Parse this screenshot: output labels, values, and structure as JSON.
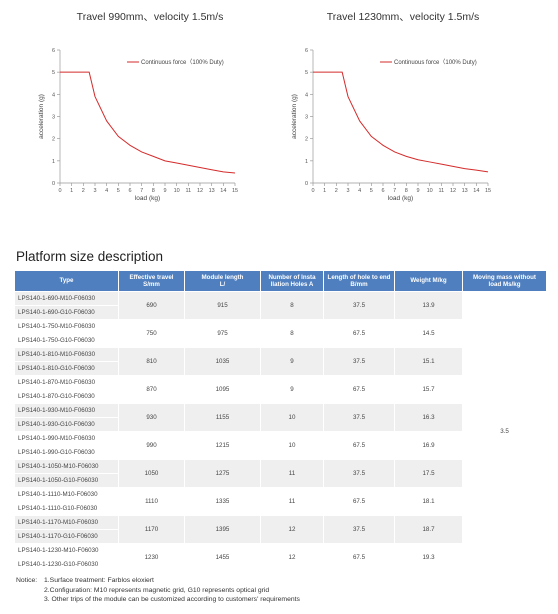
{
  "charts": [
    {
      "type": "line",
      "title": "Travel 990mm、velocity 1.5m/s",
      "y_label": "acceleration (g)",
      "x_label": "load (kg)",
      "xlim": [
        0,
        15
      ],
      "ylim": [
        0,
        6
      ],
      "xticks": [
        0,
        1,
        2,
        3,
        4,
        5,
        6,
        7,
        8,
        9,
        10,
        11,
        12,
        13,
        14,
        15
      ],
      "yticks": [
        0,
        1,
        2,
        3,
        4,
        5,
        6
      ],
      "legend": "top-right",
      "series": [
        {
          "name": "Continuous force（100% Duty)",
          "color": "#d42b2b",
          "x": [
            0,
            1,
            2,
            2.5,
            3,
            4,
            5,
            6,
            7,
            8,
            9,
            10,
            11,
            12,
            13,
            14,
            15
          ],
          "values": [
            5,
            5,
            5,
            5,
            3.9,
            2.8,
            2.1,
            1.7,
            1.4,
            1.2,
            1.0,
            0.9,
            0.8,
            0.7,
            0.6,
            0.5,
            0.45
          ]
        }
      ]
    },
    {
      "type": "line",
      "title": "Travel 1230mm、velocity 1.5m/s",
      "y_label": "acceleration (g)",
      "x_label": "load (kg)",
      "xlim": [
        0,
        15
      ],
      "ylim": [
        0,
        6
      ],
      "xticks": [
        0,
        1,
        2,
        3,
        4,
        5,
        6,
        7,
        8,
        9,
        10,
        11,
        12,
        13,
        14,
        15
      ],
      "yticks": [
        0,
        1,
        2,
        3,
        4,
        5,
        6
      ],
      "legend": "top-right",
      "series": [
        {
          "name": "Continuous force（100% Duty)",
          "color": "#d42b2b",
          "x": [
            0,
            1,
            2,
            2.5,
            3,
            4,
            5,
            6,
            7,
            8,
            9,
            10,
            11,
            12,
            13,
            14,
            15
          ],
          "values": [
            5,
            5,
            5,
            5,
            3.9,
            2.8,
            2.1,
            1.7,
            1.4,
            1.2,
            1.05,
            0.95,
            0.85,
            0.75,
            0.65,
            0.58,
            0.5
          ]
        }
      ]
    }
  ],
  "section_title": "Platform size description",
  "table": {
    "headers": [
      "Type",
      "Effective travel\nS/mm",
      "Module length\nL/",
      "Number of Insta\nllation Holes A",
      "Length of hole to end\nB/mm",
      "Weight M/kg",
      "Moving mass without\nload Ms/kg"
    ],
    "groups": [
      {
        "types": [
          "LPS140-1-690-M10-F06030",
          "LPS140-1-690-G10-F06030"
        ],
        "cells": [
          "690",
          "915",
          "8",
          "37.5",
          "13.9"
        ]
      },
      {
        "types": [
          "LPS140-1-750-M10-F06030",
          "LPS140-1-750-G10-F06030"
        ],
        "cells": [
          "750",
          "975",
          "8",
          "67.5",
          "14.5"
        ]
      },
      {
        "types": [
          "LPS140-1-810-M10-F06030",
          "LPS140-1-810-G10-F06030"
        ],
        "cells": [
          "810",
          "1035",
          "9",
          "37.5",
          "15.1"
        ]
      },
      {
        "types": [
          "LPS140-1-870-M10-F06030",
          "LPS140-1-870-G10-F06030"
        ],
        "cells": [
          "870",
          "1095",
          "9",
          "67.5",
          "15.7"
        ]
      },
      {
        "types": [
          "LPS140-1-930-M10-F06030",
          "LPS140-1-930-G10-F06030"
        ],
        "cells": [
          "930",
          "1155",
          "10",
          "37.5",
          "16.3"
        ]
      },
      {
        "types": [
          "LPS140-1-990-M10-F06030",
          "LPS140-1-990-G10-F06030"
        ],
        "cells": [
          "990",
          "1215",
          "10",
          "67.5",
          "16.9"
        ]
      },
      {
        "types": [
          "LPS140-1-1050-M10-F06030",
          "LPS140-1-1050-G10-F06030"
        ],
        "cells": [
          "1050",
          "1275",
          "11",
          "37.5",
          "17.5"
        ]
      },
      {
        "types": [
          "LPS140-1-1110-M10-F06030",
          "LPS140-1-1110-G10-F06030"
        ],
        "cells": [
          "1110",
          "1335",
          "11",
          "67.5",
          "18.1"
        ]
      },
      {
        "types": [
          "LPS140-1-1170-M10-F06030",
          "LPS140-1-1170-G10-F06030"
        ],
        "cells": [
          "1170",
          "1395",
          "12",
          "37.5",
          "18.7"
        ]
      },
      {
        "types": [
          "LPS140-1-1230-M10-F06030",
          "LPS140-1-1230-G10-F06030"
        ],
        "cells": [
          "1230",
          "1455",
          "12",
          "67.5",
          "19.3"
        ]
      }
    ],
    "moving_mass": "3.5"
  },
  "notes": [
    "Notice:",
    "1.Surface treatment: Farblos eloxiert",
    "2.Configuration: M10 represents magnetic grid, G10 represents optical grid",
    "3. Other trips of the module can be customized according to customers' requirements"
  ]
}
